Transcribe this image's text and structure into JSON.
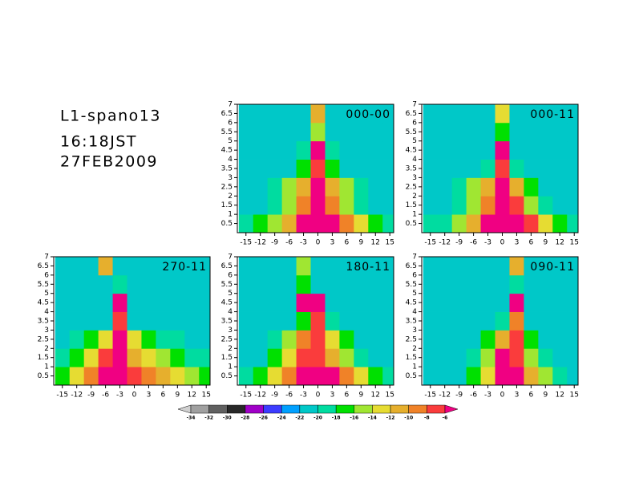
{
  "header": {
    "lines": [
      "L1-spano13",
      "16:18JST",
      "27FEB2009"
    ]
  },
  "colorbar": {
    "levels": [
      -34,
      -32,
      -30,
      -28,
      -26,
      -24,
      -22,
      -20,
      -18,
      -16,
      -14,
      -12,
      -10,
      -8,
      -6
    ],
    "colors": [
      "#d0d0d0",
      "#a0a0a0",
      "#606060",
      "#282828",
      "#a000c8",
      "#3c3cff",
      "#00a0ff",
      "#00c8c8",
      "#00dca0",
      "#00e000",
      "#a0e632",
      "#e6dc32",
      "#e6af2d",
      "#f08228",
      "#fa3c3c",
      "#f00082"
    ]
  },
  "chart_data": [
    {
      "type": "heatmap",
      "title": "000-00",
      "x": [
        -15,
        -12,
        -9,
        -6,
        -3,
        0,
        3,
        6,
        9,
        12,
        15
      ],
      "y": [
        0.5,
        1.5,
        2.5,
        3.5,
        4.5,
        5.5,
        6.5
      ],
      "values": [
        [
          -20,
          -18,
          -16,
          -12,
          -6,
          -6,
          -6,
          -10,
          -14,
          -17,
          -19
        ],
        [
          -22,
          -21,
          -20,
          -16,
          -10,
          -6,
          -10,
          -16,
          -20,
          -22,
          -22
        ],
        [
          -22,
          -22,
          -20,
          -16,
          -12,
          -6,
          -12,
          -16,
          -20,
          -22,
          -22
        ],
        [
          -22,
          -22,
          -22,
          -21,
          -18,
          -8,
          -18,
          -21,
          -22,
          -22,
          -22
        ],
        [
          -22,
          -22,
          -22,
          -22,
          -20,
          -6,
          -20,
          -22,
          -22,
          -22,
          -22
        ],
        [
          -22,
          -22,
          -22,
          -22,
          -22,
          -16,
          -22,
          -22,
          -22,
          -22,
          -22
        ],
        [
          -22,
          -22,
          -22,
          -22,
          -22,
          -12,
          -22,
          -22,
          -22,
          -22,
          -22
        ]
      ],
      "xlim": [
        -16.8,
        15.8
      ],
      "ylim": [
        0,
        7
      ],
      "xticks": [
        -15,
        -12,
        -9,
        -6,
        -3,
        0,
        3,
        6,
        9,
        12,
        15
      ],
      "yticks": [
        0.5,
        1,
        1.5,
        2,
        2.5,
        3,
        3.5,
        4,
        4.5,
        5,
        5.5,
        6,
        6.5,
        7
      ]
    },
    {
      "type": "heatmap",
      "title": "000-11",
      "x": [
        -15,
        -12,
        -9,
        -6,
        -3,
        0,
        3,
        6,
        9,
        12,
        15
      ],
      "y": [
        0.5,
        1.5,
        2.5,
        3.5,
        4.5,
        5.5,
        6.5
      ],
      "values": [
        [
          -20,
          -19,
          -16,
          -12,
          -6,
          -6,
          -6,
          -8,
          -14,
          -18,
          -19
        ],
        [
          -22,
          -22,
          -20,
          -16,
          -10,
          -6,
          -8,
          -16,
          -20,
          -22,
          -22
        ],
        [
          -22,
          -22,
          -20,
          -16,
          -12,
          -6,
          -12,
          -18,
          -21,
          -22,
          -22
        ],
        [
          -22,
          -22,
          -22,
          -22,
          -20,
          -8,
          -20,
          -22,
          -22,
          -22,
          -22
        ],
        [
          -22,
          -22,
          -22,
          -22,
          -21,
          -6,
          -21,
          -22,
          -22,
          -22,
          -22
        ],
        [
          -22,
          -22,
          -22,
          -22,
          -22,
          -18,
          -22,
          -22,
          -22,
          -22,
          -22
        ],
        [
          -22,
          -22,
          -22,
          -22,
          -22,
          -14,
          -22,
          -22,
          -22,
          -22,
          -22
        ]
      ],
      "xlim": [
        -16.8,
        15.8
      ],
      "ylim": [
        0,
        7
      ],
      "xticks": [
        -15,
        -12,
        -9,
        -6,
        -3,
        0,
        3,
        6,
        9,
        12,
        15
      ],
      "yticks": [
        0.5,
        1,
        1.5,
        2,
        2.5,
        3,
        3.5,
        4,
        4.5,
        5,
        5.5,
        6,
        6.5,
        7
      ]
    },
    {
      "type": "heatmap",
      "title": "270-11",
      "x": [
        -15,
        -12,
        -9,
        -6,
        -3,
        0,
        3,
        6,
        9,
        12,
        15
      ],
      "y": [
        0.5,
        1.5,
        2.5,
        3.5,
        4.5,
        5.5,
        6.5
      ],
      "values": [
        [
          -18,
          -14,
          -10,
          -6,
          -6,
          -8,
          -10,
          -12,
          -14,
          -16,
          -18
        ],
        [
          -20,
          -18,
          -14,
          -8,
          -6,
          -12,
          -14,
          -16,
          -18,
          -20,
          -20
        ],
        [
          -21,
          -20,
          -18,
          -14,
          -6,
          -14,
          -18,
          -20,
          -20,
          -21,
          -22
        ],
        [
          -22,
          -22,
          -22,
          -21,
          -8,
          -21,
          -22,
          -22,
          -22,
          -22,
          -22
        ],
        [
          -22,
          -22,
          -22,
          -22,
          -6,
          -21,
          -22,
          -22,
          -22,
          -22,
          -22
        ],
        [
          -22,
          -22,
          -22,
          -22,
          -20,
          -22,
          -22,
          -22,
          -22,
          -22,
          -22
        ],
        [
          -22,
          -22,
          -22,
          -12,
          -22,
          -22,
          -22,
          -22,
          -22,
          -22,
          -22
        ]
      ],
      "xlim": [
        -16.8,
        15.8
      ],
      "ylim": [
        0,
        7
      ],
      "xticks": [
        -15,
        -12,
        -9,
        -6,
        -3,
        0,
        3,
        6,
        9,
        12,
        15
      ],
      "yticks": [
        0.5,
        1,
        1.5,
        2,
        2.5,
        3,
        3.5,
        4,
        4.5,
        5,
        5.5,
        6,
        6.5,
        7
      ]
    },
    {
      "type": "heatmap",
      "title": "180-11",
      "x": [
        -15,
        -12,
        -9,
        -6,
        -3,
        0,
        3,
        6,
        9,
        12,
        15
      ],
      "y": [
        0.5,
        1.5,
        2.5,
        3.5,
        4.5,
        5.5,
        6.5
      ],
      "values": [
        [
          -19,
          -17,
          -14,
          -10,
          -6,
          -6,
          -6,
          -10,
          -14,
          -17,
          -19
        ],
        [
          -22,
          -21,
          -18,
          -14,
          -8,
          -8,
          -12,
          -16,
          -20,
          -22,
          -22
        ],
        [
          -22,
          -22,
          -20,
          -16,
          -10,
          -8,
          -14,
          -18,
          -21,
          -22,
          -22
        ],
        [
          -22,
          -22,
          -22,
          -21,
          -18,
          -8,
          -20,
          -22,
          -22,
          -22,
          -22
        ],
        [
          -22,
          -22,
          -22,
          -22,
          -6,
          -6,
          -22,
          -22,
          -22,
          -22,
          -22
        ],
        [
          -22,
          -22,
          -22,
          -22,
          -18,
          -22,
          -22,
          -22,
          -22,
          -22,
          -22
        ],
        [
          -22,
          -22,
          -22,
          -22,
          -16,
          -22,
          -22,
          -22,
          -22,
          -22,
          -22
        ]
      ],
      "xlim": [
        -16.8,
        15.8
      ],
      "ylim": [
        0,
        7
      ],
      "xticks": [
        -15,
        -12,
        -9,
        -6,
        -3,
        0,
        3,
        6,
        9,
        12,
        15
      ],
      "yticks": [
        0.5,
        1,
        1.5,
        2,
        2.5,
        3,
        3.5,
        4,
        4.5,
        5,
        5.5,
        6,
        6.5,
        7
      ]
    },
    {
      "type": "heatmap",
      "title": "090-11",
      "x": [
        -15,
        -12,
        -9,
        -6,
        -3,
        0,
        3,
        6,
        9,
        12,
        15
      ],
      "y": [
        0.5,
        1.5,
        2.5,
        3.5,
        4.5,
        5.5,
        6.5
      ],
      "values": [
        [
          -22,
          -22,
          -21,
          -18,
          -14,
          -6,
          -6,
          -12,
          -16,
          -20,
          -22
        ],
        [
          -22,
          -22,
          -22,
          -20,
          -16,
          -6,
          -8,
          -16,
          -20,
          -22,
          -22
        ],
        [
          -22,
          -22,
          -22,
          -21,
          -18,
          -12,
          -8,
          -18,
          -21,
          -22,
          -22
        ],
        [
          -22,
          -22,
          -22,
          -22,
          -22,
          -20,
          -10,
          -22,
          -22,
          -22,
          -22
        ],
        [
          -22,
          -22,
          -22,
          -22,
          -22,
          -22,
          -6,
          -22,
          -22,
          -22,
          -22
        ],
        [
          -22,
          -22,
          -22,
          -22,
          -22,
          -22,
          -20,
          -22,
          -22,
          -22,
          -22
        ],
        [
          -22,
          -22,
          -22,
          -22,
          -22,
          -22,
          -12,
          -22,
          -22,
          -22,
          -22
        ]
      ],
      "xlim": [
        -16.8,
        15.8
      ],
      "ylim": [
        0,
        7
      ],
      "xticks": [
        -15,
        -12,
        -9,
        -6,
        -3,
        0,
        3,
        6,
        9,
        12,
        15
      ],
      "yticks": [
        0.5,
        1,
        1.5,
        2,
        2.5,
        3,
        3.5,
        4,
        4.5,
        5,
        5.5,
        6,
        6.5,
        7
      ]
    }
  ]
}
